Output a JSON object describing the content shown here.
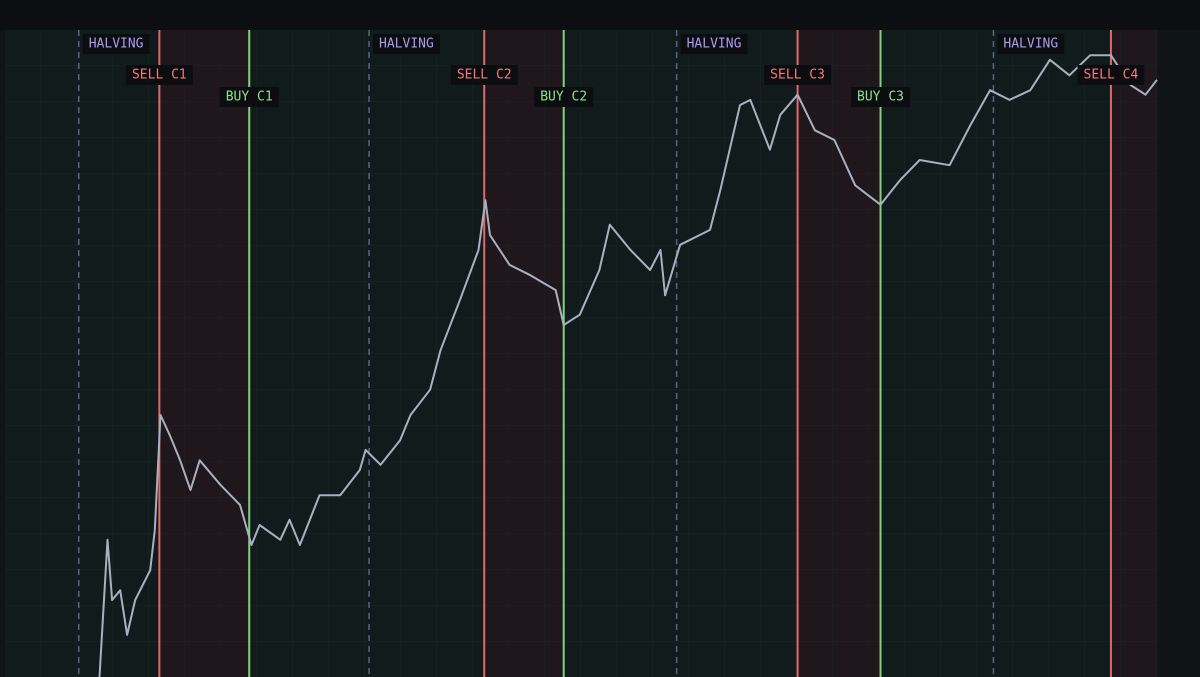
{
  "chart_data": {
    "type": "line",
    "xlim": [
      0,
      100
    ],
    "ylim": [
      0,
      100
    ],
    "color": "#a9b1c0",
    "x": [
      8.2,
      8.9,
      9.3,
      10.0,
      10.6,
      11.3,
      12.6,
      13.0,
      13.5,
      14.3,
      15.2,
      16.1,
      16.9,
      18.7,
      20.4,
      21.4,
      22.1,
      23.9,
      24.7,
      25.6,
      27.3,
      29.1,
      30.8,
      31.3,
      32.6,
      34.3,
      35.2,
      36.9,
      37.8,
      39.5,
      41.1,
      41.7,
      42.1,
      43.8,
      45.6,
      47.8,
      48.5,
      49.9,
      51.6,
      52.5,
      54.3,
      56.0,
      56.9,
      57.3,
      58.6,
      61.2,
      62.1,
      63.8,
      64.7,
      66.4,
      67.3,
      68.8,
      70.3,
      72.0,
      73.8,
      76.0,
      77.7,
      79.4,
      82.0,
      83.8,
      85.5,
      87.2,
      89.0,
      90.7,
      92.4,
      94.2,
      96.0,
      97.7,
      99.0,
      100
    ],
    "values": [
      0,
      21.2,
      11.9,
      13.4,
      6.5,
      11.9,
      16.5,
      22.7,
      40.5,
      37.4,
      33.5,
      28.9,
      33.5,
      29.7,
      26.6,
      20.4,
      23.5,
      21.2,
      24.3,
      20.4,
      28.1,
      28.1,
      32.0,
      35.1,
      32.8,
      36.6,
      40.5,
      44.4,
      50.5,
      58.3,
      66.0,
      73.7,
      68.3,
      63.7,
      62.1,
      59.8,
      54.4,
      56.0,
      62.9,
      69.9,
      66.0,
      62.9,
      66.0,
      59.0,
      66.8,
      69.1,
      75.3,
      88.4,
      89.2,
      81.5,
      86.9,
      90.0,
      84.5,
      83.0,
      76.0,
      73.0,
      76.8,
      79.9,
      79.1,
      85.3,
      90.7,
      89.2,
      90.7,
      95.4,
      93.0,
      96.1,
      96.1,
      91.5,
      90.0,
      92.3
    ],
    "events": [
      {
        "label": "HALVING",
        "x": 6.4,
        "color": "#a99cf0",
        "line_color": "#5a6386",
        "dashed": true
      },
      {
        "label": "SELL C1",
        "x": 13.4,
        "color": "#f07c7c",
        "line_color": "#e06a6a",
        "dashed": false
      },
      {
        "label": "BUY C1",
        "x": 21.2,
        "color": "#8fe08f",
        "line_color": "#7ed37e",
        "dashed": false
      },
      {
        "label": "HALVING",
        "x": 31.6,
        "color": "#a99cf0",
        "line_color": "#5a6386",
        "dashed": true
      },
      {
        "label": "SELL C2",
        "x": 41.6,
        "color": "#f07c7c",
        "line_color": "#e06a6a",
        "dashed": false
      },
      {
        "label": "BUY C2",
        "x": 48.5,
        "color": "#8fe08f",
        "line_color": "#7ed37e",
        "dashed": false
      },
      {
        "label": "HALVING",
        "x": 58.3,
        "color": "#a99cf0",
        "line_color": "#5a6386",
        "dashed": true
      },
      {
        "label": "SELL C3",
        "x": 68.8,
        "color": "#f07c7c",
        "line_color": "#e06a6a",
        "dashed": false
      },
      {
        "label": "BUY C3",
        "x": 76.0,
        "color": "#8fe08f",
        "line_color": "#7ed37e",
        "dashed": false
      },
      {
        "label": "HALVING",
        "x": 85.8,
        "color": "#a99cf0",
        "line_color": "#5a6386",
        "dashed": true
      },
      {
        "label": "SELL C4",
        "x": 96.0,
        "color": "#f07c7c",
        "line_color": "#e06a6a",
        "dashed": false
      }
    ]
  }
}
